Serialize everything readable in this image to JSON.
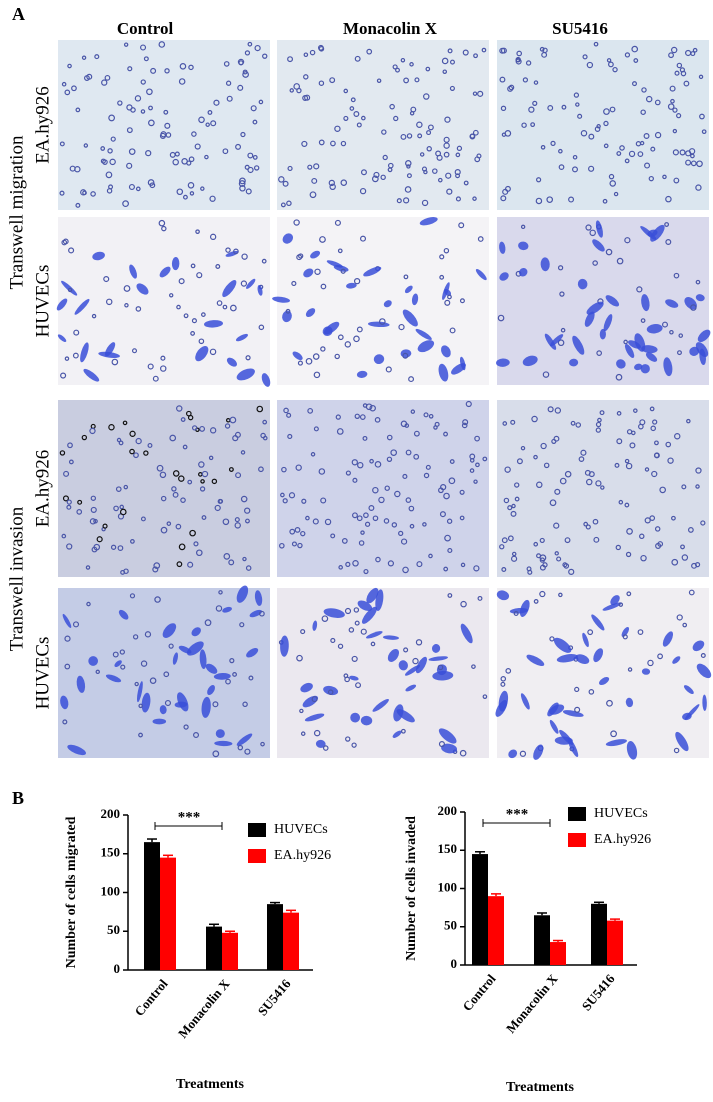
{
  "panel_a": {
    "label": "A",
    "columns": [
      "Control",
      "Monacolin X",
      "SU5416"
    ],
    "groups": [
      {
        "title": "Transwell migration",
        "rows": [
          "EA.hy926",
          "HUVECs"
        ]
      },
      {
        "title": "Transwell invasion",
        "rows": [
          "EA.hy926",
          "HUVECs"
        ]
      }
    ]
  },
  "panel_b": {
    "label": "B"
  },
  "chart_data": [
    {
      "type": "bar",
      "ylabel": "Number of cells migrated",
      "xlabel": "Treatments",
      "categories": [
        "Control",
        "Monacolin X",
        "SU5416"
      ],
      "series": [
        {
          "name": "HUVECs",
          "color": "#000000",
          "values": [
            165,
            56,
            85
          ],
          "errors": [
            4,
            3,
            2
          ]
        },
        {
          "name": "EA.hy926",
          "color": "#ff0000",
          "values": [
            145,
            48,
            74
          ],
          "errors": [
            3,
            2,
            3
          ]
        }
      ],
      "ylim": [
        0,
        200
      ],
      "yticks": [
        0,
        50,
        100,
        150,
        200
      ],
      "annotation": "***"
    },
    {
      "type": "bar",
      "ylabel": "Number of cells invaded",
      "xlabel": "Treatments",
      "categories": [
        "Control",
        "Monacolin X",
        "SU5416"
      ],
      "series": [
        {
          "name": "HUVECs",
          "color": "#000000",
          "values": [
            145,
            65,
            80
          ],
          "errors": [
            3,
            3,
            2
          ]
        },
        {
          "name": "EA.hy926",
          "color": "#ff0000",
          "values": [
            90,
            30,
            58
          ],
          "errors": [
            3,
            2,
            2
          ]
        }
      ],
      "ylim": [
        0,
        200
      ],
      "yticks": [
        0,
        50,
        100,
        150,
        200
      ],
      "annotation": "***"
    }
  ]
}
